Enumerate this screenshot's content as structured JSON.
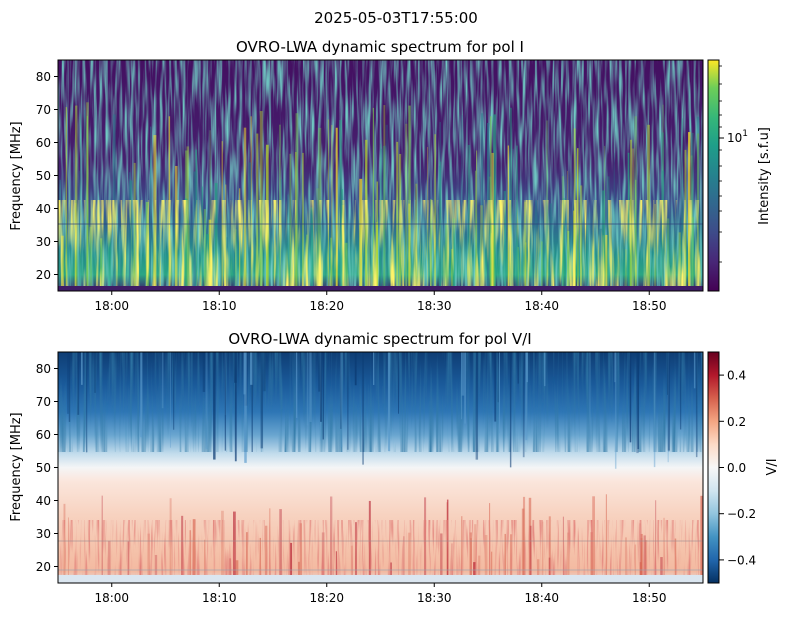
{
  "figure": {
    "suptitle": "2025-05-03T17:55:00"
  },
  "chart_data": [
    {
      "type": "heatmap",
      "title": "OVRO-LWA dynamic spectrum for pol I",
      "xlabel": "",
      "ylabel": "Frequency [MHz]",
      "xlim": [
        "17:55",
        "18:55"
      ],
      "ylim": [
        15,
        85
      ],
      "xticks": [
        "18:00",
        "18:10",
        "18:20",
        "18:30",
        "18:40",
        "18:50"
      ],
      "yticks": [
        20,
        30,
        40,
        50,
        60,
        70,
        80
      ],
      "colormap": "viridis",
      "colorbar": {
        "label": "Intensity [s.f.u]",
        "scale": "log",
        "major_tick_label_base": "10",
        "major_tick_label_exp": "1"
      }
    },
    {
      "type": "heatmap",
      "title": "OVRO-LWA dynamic spectrum for pol V/I",
      "xlabel": "",
      "ylabel": "Frequency [MHz]",
      "xlim": [
        "17:55",
        "18:55"
      ],
      "ylim": [
        15,
        85
      ],
      "xticks": [
        "18:00",
        "18:10",
        "18:20",
        "18:30",
        "18:40",
        "18:50"
      ],
      "yticks": [
        20,
        30,
        40,
        50,
        60,
        70,
        80
      ],
      "colormap": "RdBu_r",
      "colorbar": {
        "label": "V/I",
        "scale": "linear",
        "range": [
          -0.5,
          0.5
        ],
        "ticks": [
          0.4,
          0.2,
          0.0,
          -0.2,
          -0.4
        ],
        "tick_labels": [
          "0.4",
          "0.2",
          "0.0",
          "−0.2",
          "−0.4"
        ]
      }
    }
  ]
}
